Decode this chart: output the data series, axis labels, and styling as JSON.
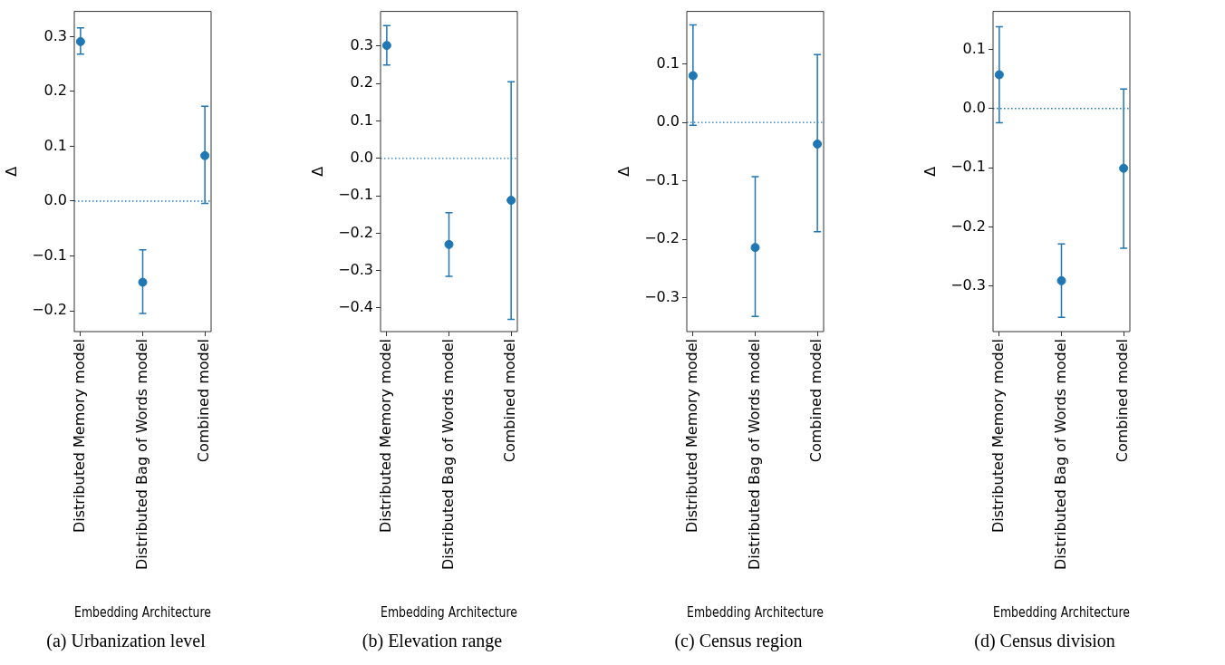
{
  "chart_data": [
    {
      "type": "scatter",
      "title": "(a) Urbanization level",
      "xlabel": "Embedding Architecture",
      "ylabel": "Δ",
      "categories": [
        "Distributed Memory model",
        "Distributed Bag of Words model",
        "Combined model"
      ],
      "color": "#1f77b4",
      "marker": "circle",
      "grid": false,
      "values": [
        0.291,
        -0.148,
        0.083
      ],
      "errors": [
        [
          0.268,
          0.316
        ],
        [
          -0.205,
          -0.089
        ],
        [
          -0.004,
          0.173
        ]
      ],
      "ylim": [
        -0.238,
        0.346
      ],
      "yticks": [
        {
          "value": -0.2,
          "label": "−0.2"
        },
        {
          "value": -0.1,
          "label": "−0.1"
        },
        {
          "value": 0,
          "label": "0.0"
        },
        {
          "value": 0.1,
          "label": "0.1"
        },
        {
          "value": 0.2,
          "label": "0.2"
        },
        {
          "value": 0.3,
          "label": "0.3"
        }
      ],
      "ref_lines": [
        {
          "axis": "y",
          "value": 0,
          "color": "#1f77b4",
          "line_style": "dotted"
        }
      ]
    },
    {
      "type": "scatter",
      "title": "(b) Elevation range",
      "xlabel": "Embedding Architecture",
      "ylabel": "Δ",
      "categories": [
        "Distributed Memory model",
        "Distributed Bag of Words model",
        "Combined model"
      ],
      "color": "#1f77b4",
      "marker": "circle",
      "grid": false,
      "values": [
        0.302,
        -0.23,
        -0.112
      ],
      "errors": [
        [
          0.25,
          0.355
        ],
        [
          -0.315,
          -0.145
        ],
        [
          -0.43,
          0.205
        ]
      ],
      "ylim": [
        -0.463,
        0.393
      ],
      "yticks": [
        {
          "value": -0.4,
          "label": "−0.4"
        },
        {
          "value": -0.3,
          "label": "−0.3"
        },
        {
          "value": -0.2,
          "label": "−0.2"
        },
        {
          "value": -0.1,
          "label": "−0.1"
        },
        {
          "value": 0,
          "label": "0.0"
        },
        {
          "value": 0.1,
          "label": "0.1"
        },
        {
          "value": 0.2,
          "label": "0.2"
        },
        {
          "value": 0.3,
          "label": "0.3"
        }
      ],
      "ref_lines": [
        {
          "axis": "y",
          "value": 0,
          "color": "#1f77b4",
          "line_style": "dotted"
        }
      ]
    },
    {
      "type": "scatter",
      "title": "(c) Census region",
      "xlabel": "Embedding Architecture",
      "ylabel": "Δ",
      "categories": [
        "Distributed Memory model",
        "Distributed Bag of Words model",
        "Combined model"
      ],
      "color": "#1f77b4",
      "marker": "circle",
      "grid": false,
      "values": [
        0.08,
        -0.214,
        -0.037
      ],
      "errors": [
        [
          -0.005,
          0.167
        ],
        [
          -0.332,
          -0.093
        ],
        [
          -0.187,
          0.116
        ]
      ],
      "ylim": [
        -0.358,
        0.19
      ],
      "yticks": [
        {
          "value": -0.3,
          "label": "−0.3"
        },
        {
          "value": -0.2,
          "label": "−0.2"
        },
        {
          "value": -0.1,
          "label": "−0.1"
        },
        {
          "value": 0,
          "label": "0.0"
        },
        {
          "value": 0.1,
          "label": "0.1"
        }
      ],
      "ref_lines": [
        {
          "axis": "y",
          "value": 0,
          "color": "#1f77b4",
          "line_style": "dotted"
        }
      ]
    },
    {
      "type": "scatter",
      "title": "(d) Census division",
      "xlabel": "Embedding Architecture",
      "ylabel": "Δ",
      "categories": [
        "Distributed Memory model",
        "Distributed Bag of Words model",
        "Combined model"
      ],
      "color": "#1f77b4",
      "marker": "circle",
      "grid": false,
      "values": [
        0.057,
        -0.291,
        -0.101
      ],
      "errors": [
        [
          -0.024,
          0.138
        ],
        [
          -0.353,
          -0.229
        ],
        [
          -0.236,
          0.033
        ]
      ],
      "ylim": [
        -0.377,
        0.164
      ],
      "yticks": [
        {
          "value": -0.3,
          "label": "−0.3"
        },
        {
          "value": -0.2,
          "label": "−0.2"
        },
        {
          "value": -0.1,
          "label": "−0.1"
        },
        {
          "value": 0,
          "label": "0.0"
        },
        {
          "value": 0.1,
          "label": "0.1"
        }
      ],
      "ref_lines": [
        {
          "axis": "y",
          "value": 0,
          "color": "#1f77b4",
          "line_style": "dotted"
        }
      ]
    }
  ]
}
